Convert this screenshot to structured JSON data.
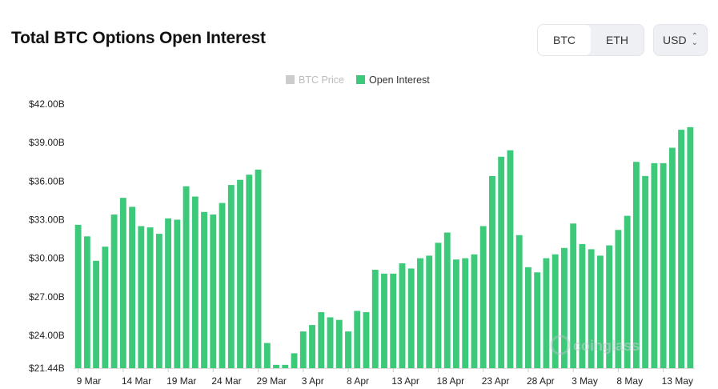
{
  "header": {
    "title": "Total BTC Options Open Interest",
    "asset_tabs": [
      "BTC",
      "ETH"
    ],
    "active_asset": "BTC",
    "currency": "USD"
  },
  "watermark": "coinglass",
  "colors": {
    "bar": "#3cc97a",
    "btc_price_legend": "#cccccc",
    "grid": "#eeeeee"
  },
  "chart_data": {
    "type": "bar",
    "title": "Total BTC Options Open Interest",
    "legend": [
      {
        "name": "BTC Price",
        "color": "#cccccc",
        "active": false
      },
      {
        "name": "Open Interest",
        "color": "#3cc97a",
        "active": true
      }
    ],
    "legend_position": "top-center",
    "y_ticks": [
      "$21.44B",
      "$24.00B",
      "$27.00B",
      "$30.00B",
      "$33.00B",
      "$36.00B",
      "$39.00B",
      "$42.00B"
    ],
    "ylim": [
      21.44,
      42.0
    ],
    "y_unit": "billion USD",
    "x_ticks": [
      "9 Mar",
      "14 Mar",
      "19 Mar",
      "24 Mar",
      "29 Mar",
      "3 Apr",
      "8 Apr",
      "13 Apr",
      "18 Apr",
      "23 Apr",
      "28 Apr",
      "3 May",
      "8 May",
      "13 May"
    ],
    "grid": false,
    "series": [
      {
        "name": "Open Interest",
        "values": [
          32.6,
          31.7,
          29.8,
          30.9,
          33.4,
          34.7,
          34.0,
          32.5,
          32.4,
          31.9,
          33.1,
          33.0,
          35.6,
          34.8,
          33.6,
          33.4,
          34.3,
          35.7,
          36.1,
          36.5,
          36.9,
          23.4,
          21.7,
          21.7,
          22.6,
          24.3,
          24.8,
          25.8,
          25.4,
          25.2,
          24.3,
          25.9,
          25.8,
          29.1,
          28.8,
          28.8,
          29.6,
          29.2,
          30.0,
          30.2,
          31.2,
          32.0,
          29.9,
          30.0,
          30.3,
          32.5,
          36.4,
          37.9,
          38.4,
          31.8,
          29.3,
          28.9,
          30.0,
          30.3,
          30.8,
          32.7,
          31.1,
          30.7,
          30.2,
          31.0,
          32.2,
          33.3,
          37.5,
          36.4,
          37.4,
          37.4,
          38.6,
          40.0,
          40.2
        ]
      }
    ]
  }
}
